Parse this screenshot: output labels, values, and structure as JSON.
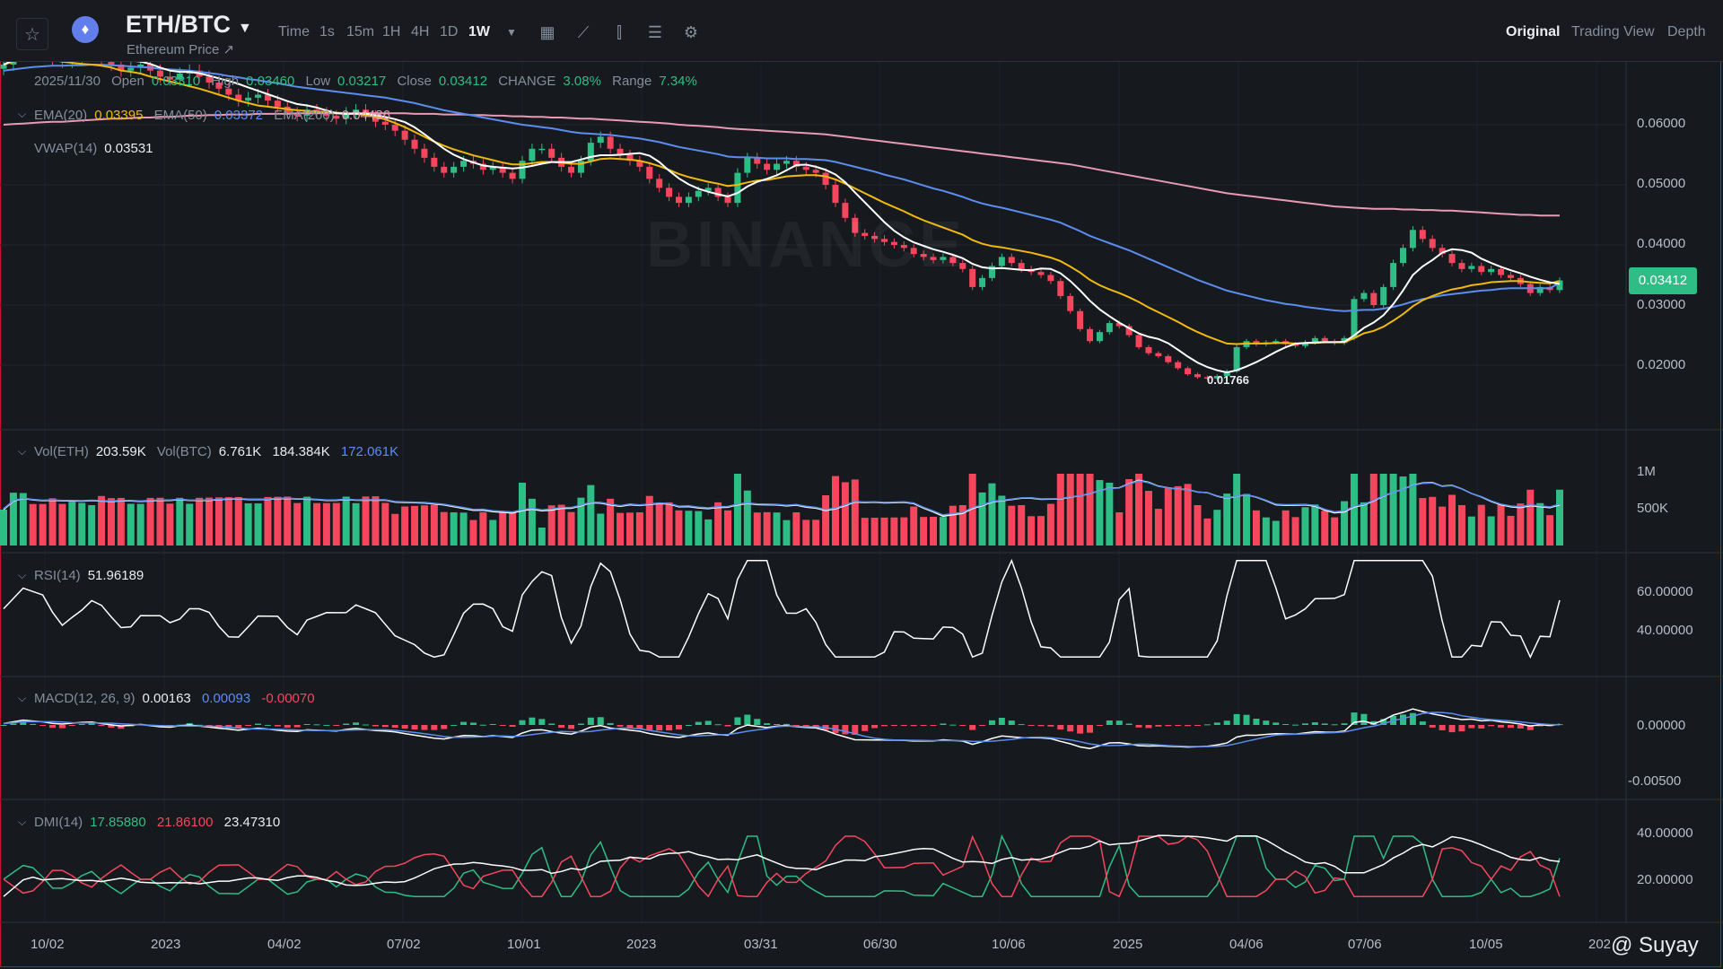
{
  "header": {
    "pair": "ETH/BTC",
    "subtitle": "Ethereum Price ↗",
    "timeframes": [
      "Time",
      "1s",
      "15m",
      "1H",
      "4H",
      "1D",
      "1W"
    ],
    "active_timeframe": "1W",
    "views": [
      "Original",
      "Trading View",
      "Depth"
    ],
    "active_view": "Original",
    "icons": [
      "star-icon",
      "eth-coin-icon",
      "calendar-icon",
      "indicator-icon",
      "candle-type-icon",
      "settings-list-icon",
      "gear-icon"
    ]
  },
  "ohlc": {
    "date": "2025/11/30",
    "open_label": "Open",
    "open": "0.03310",
    "high_label": "High",
    "high": "0.03460",
    "low_label": "Low",
    "low": "0.03217",
    "close_label": "Close",
    "close": "0.03412",
    "change_label": "CHANGE",
    "change": "3.08%",
    "range_label": "Range",
    "range": "7.34%"
  },
  "ema": {
    "ema20_label": "EMA(20)",
    "ema20": "0.03395",
    "ema50_label": "EMA(50)",
    "ema50": "0.03372",
    "ema200_label": "EMA(200)",
    "ema200": "0.04486"
  },
  "vwap": {
    "label": "VWAP(14)",
    "value": "0.03531"
  },
  "price_axis": [
    "0.06000",
    "0.05000",
    "0.04000",
    "0.03000",
    "0.02000"
  ],
  "last_price": "0.03412",
  "low_marker": "0.01766",
  "watermark": "BINANCE",
  "volume": {
    "label_eth": "Vol(ETH)",
    "eth": "203.59K",
    "label_btc": "Vol(BTC)",
    "btc": "6.761K",
    "ma1": "184.384K",
    "ma2": "172.061K",
    "axis": [
      "1M",
      "500K"
    ]
  },
  "rsi": {
    "label": "RSI(14)",
    "value": "51.96189",
    "axis": [
      "60.00000",
      "40.00000"
    ]
  },
  "macd": {
    "label": "MACD(12, 26, 9)",
    "dif": "0.00163",
    "dea": "0.00093",
    "hist": "-0.00070",
    "axis": [
      "0.00000",
      "-0.00500"
    ]
  },
  "dmi": {
    "label": "DMI(14)",
    "pdi": "17.85880",
    "mdi": "21.86100",
    "adx": "23.47310",
    "axis": [
      "40.00000",
      "20.00000"
    ]
  },
  "x_axis": [
    "10/02",
    "2023",
    "04/02",
    "07/02",
    "10/01",
    "2023",
    "03/31",
    "06/30",
    "10/06",
    "2025",
    "04/06",
    "07/06",
    "10/05",
    "202"
  ],
  "credit": "@ Suyay",
  "colors": {
    "up": "#2ebd85",
    "down": "#f6465d",
    "ema20": "#f0b90b",
    "ema50": "#5b8def",
    "ema200": "#e89ab4",
    "vwap": "#ffffff",
    "bg": "#161a1e"
  },
  "chart_data": {
    "type": "candlestick",
    "title": "ETH/BTC",
    "interval": "1W",
    "close_series": [
      0.07,
      0.0715,
      0.073,
      0.0725,
      0.072,
      0.071,
      0.0705,
      0.0712,
      0.0718,
      0.0722,
      0.071,
      0.07,
      0.069,
      0.0695,
      0.07,
      0.069,
      0.068,
      0.0675,
      0.0685,
      0.069,
      0.068,
      0.067,
      0.066,
      0.065,
      0.064,
      0.0645,
      0.065,
      0.064,
      0.063,
      0.062,
      0.0615,
      0.0625,
      0.062,
      0.0615,
      0.061,
      0.062,
      0.0625,
      0.0615,
      0.0605,
      0.06,
      0.059,
      0.0575,
      0.056,
      0.0545,
      0.053,
      0.052,
      0.053,
      0.054,
      0.0535,
      0.0525,
      0.053,
      0.052,
      0.051,
      0.054,
      0.056,
      0.056,
      0.0545,
      0.053,
      0.052,
      0.054,
      0.057,
      0.058,
      0.056,
      0.055,
      0.054,
      0.053,
      0.051,
      0.0495,
      0.048,
      0.047,
      0.048,
      0.049,
      0.0495,
      0.048,
      0.047,
      0.052,
      0.0545,
      0.0535,
      0.0525,
      0.0535,
      0.054,
      0.053,
      0.0525,
      0.052,
      0.05,
      0.047,
      0.0445,
      0.042,
      0.0415,
      0.041,
      0.0405,
      0.04,
      0.0395,
      0.0385,
      0.038,
      0.0375,
      0.038,
      0.037,
      0.036,
      0.033,
      0.0345,
      0.0365,
      0.038,
      0.037,
      0.036,
      0.0355,
      0.035,
      0.034,
      0.0315,
      0.029,
      0.026,
      0.024,
      0.0255,
      0.027,
      0.0265,
      0.025,
      0.023,
      0.022,
      0.0215,
      0.0205,
      0.0195,
      0.0185,
      0.018,
      0.0178,
      0.0182,
      0.019,
      0.023,
      0.024,
      0.0235,
      0.0238,
      0.024,
      0.0235,
      0.0232,
      0.0238,
      0.0245,
      0.024,
      0.0237,
      0.0245,
      0.031,
      0.032,
      0.03,
      0.033,
      0.037,
      0.0395,
      0.0425,
      0.041,
      0.0395,
      0.0385,
      0.037,
      0.036,
      0.0365,
      0.0355,
      0.036,
      0.035,
      0.0345,
      0.0335,
      0.032,
      0.033,
      0.0325,
      0.0341
    ],
    "ema20": [
      0.07,
      0.0705,
      0.071,
      0.071,
      0.071,
      0.0708,
      0.0705,
      0.0703,
      0.0701,
      0.07,
      0.0698,
      0.0695,
      0.069,
      0.0688,
      0.0685,
      0.068,
      0.0676,
      0.0672,
      0.0668,
      0.0664,
      0.066,
      0.0655,
      0.065,
      0.0645,
      0.064,
      0.0636,
      0.0632,
      0.063,
      0.0628,
      0.0626,
      0.0624,
      0.0623,
      0.0622,
      0.0621,
      0.062,
      0.0619,
      0.0618,
      0.0616,
      0.0613,
      0.0609,
      0.0603,
      0.0596,
      0.0588,
      0.058,
      0.0572,
      0.0565,
      0.0559,
      0.0554,
      0.0549,
      0.0545,
      0.0541,
      0.0537,
      0.0534,
      0.0534,
      0.0536,
      0.0538,
      0.0538,
      0.0537,
      0.0535,
      0.0535,
      0.0539,
      0.0543,
      0.0544,
      0.0543,
      0.0542,
      0.054,
      0.0536,
      0.0531,
      0.0525,
      0.0518,
      0.0513,
      0.0509,
      0.0505,
      0.0502,
      0.0498,
      0.05,
      0.0504,
      0.0507,
      0.0508,
      0.0511,
      0.0514,
      0.0515,
      0.0516,
      0.0516,
      0.0514,
      0.0509,
      0.0502,
      0.0494,
      0.0486,
      0.0478,
      0.047,
      0.0463,
      0.0456,
      0.0448,
      0.0441,
      0.0435,
      0.0429,
      0.0423,
      0.0417,
      0.0408,
      0.0402,
      0.0398,
      0.0396,
      0.0393,
      0.039,
      0.0387,
      0.0383,
      0.0379,
      0.0373,
      0.0364,
      0.0354,
      0.0342,
      0.0333,
      0.0326,
      0.032,
      0.0313,
      0.0305,
      0.0296,
      0.0288,
      0.028,
      0.0272,
      0.0263,
      0.0255,
      0.0248,
      0.0242,
      0.0236,
      0.0235,
      0.0236,
      0.0236,
      0.0236,
      0.0237,
      0.0237,
      0.0236,
      0.0237,
      0.0237,
      0.0238,
      0.0238,
      0.0238,
      0.0245,
      0.0253,
      0.0257,
      0.0264,
      0.0274,
      0.0285,
      0.0298,
      0.0308,
      0.0315,
      0.0321,
      0.0326,
      0.0329,
      0.0333,
      0.0335,
      0.0338,
      0.0339,
      0.034,
      0.034,
      0.0338,
      0.0337,
      0.0336,
      0.034
    ],
    "ema50": [
      0.069,
      0.0692,
      0.0694,
      0.0696,
      0.0697,
      0.0698,
      0.0698,
      0.0699,
      0.0699,
      0.07,
      0.07,
      0.0699,
      0.0698,
      0.0697,
      0.0696,
      0.0695,
      0.0693,
      0.0692,
      0.0691,
      0.069,
      0.0688,
      0.0686,
      0.0684,
      0.0681,
      0.0679,
      0.0676,
      0.0674,
      0.0671,
      0.0669,
      0.0666,
      0.0663,
      0.0661,
      0.0659,
      0.0657,
      0.0655,
      0.0653,
      0.0651,
      0.0649,
      0.0647,
      0.0645,
      0.0642,
      0.0639,
      0.0636,
      0.0632,
      0.0628,
      0.0624,
      0.0621,
      0.0618,
      0.0615,
      0.0612,
      0.0609,
      0.0606,
      0.0603,
      0.06,
      0.0598,
      0.0596,
      0.0594,
      0.0591,
      0.0588,
      0.0586,
      0.0585,
      0.0584,
      0.0583,
      0.0581,
      0.0579,
      0.0577,
      0.0574,
      0.0571,
      0.0567,
      0.0563,
      0.056,
      0.0557,
      0.0554,
      0.0551,
      0.0547,
      0.0546,
      0.0546,
      0.0545,
      0.0544,
      0.0544,
      0.0544,
      0.0543,
      0.0543,
      0.0542,
      0.0541,
      0.0538,
      0.0534,
      0.053,
      0.0526,
      0.0522,
      0.0517,
      0.0513,
      0.0509,
      0.0504,
      0.0499,
      0.0494,
      0.049,
      0.0485,
      0.048,
      0.0474,
      0.0469,
      0.0465,
      0.0462,
      0.0458,
      0.0454,
      0.045,
      0.0446,
      0.0442,
      0.0437,
      0.043,
      0.0423,
      0.0415,
      0.0409,
      0.0403,
      0.0397,
      0.0391,
      0.0384,
      0.0377,
      0.037,
      0.0363,
      0.0356,
      0.0349,
      0.0342,
      0.0336,
      0.033,
      0.0324,
      0.032,
      0.0316,
      0.0312,
      0.0308,
      0.0305,
      0.0302,
      0.03,
      0.0297,
      0.0295,
      0.0293,
      0.0291,
      0.029,
      0.0291,
      0.0292,
      0.0292,
      0.0294,
      0.0297,
      0.0301,
      0.0306,
      0.031,
      0.0313,
      0.0316,
      0.0318,
      0.032,
      0.0322,
      0.0324,
      0.0325,
      0.0327,
      0.0328,
      0.0328,
      0.0328,
      0.0328,
      0.0328,
      0.0337
    ],
    "ema200": [
      0.06,
      0.0601,
      0.0602,
      0.0603,
      0.0604,
      0.0605,
      0.0605,
      0.0606,
      0.0607,
      0.0608,
      0.0609,
      0.061,
      0.061,
      0.0611,
      0.0612,
      0.0612,
      0.0613,
      0.0613,
      0.0614,
      0.0615,
      0.0615,
      0.0616,
      0.0616,
      0.0617,
      0.0617,
      0.0617,
      0.0618,
      0.0618,
      0.0618,
      0.0618,
      0.0619,
      0.0619,
      0.0619,
      0.0619,
      0.0619,
      0.0619,
      0.0619,
      0.0619,
      0.0619,
      0.0619,
      0.0619,
      0.0619,
      0.0618,
      0.0618,
      0.0618,
      0.0617,
      0.0617,
      0.0617,
      0.0616,
      0.0616,
      0.0615,
      0.0615,
      0.0614,
      0.0614,
      0.0613,
      0.0613,
      0.0612,
      0.0612,
      0.0611,
      0.061,
      0.061,
      0.0609,
      0.0608,
      0.0607,
      0.0606,
      0.0605,
      0.0604,
      0.0603,
      0.0602,
      0.06,
      0.0599,
      0.0598,
      0.0597,
      0.0596,
      0.0594,
      0.0593,
      0.0592,
      0.0591,
      0.059,
      0.0589,
      0.0588,
      0.0587,
      0.0586,
      0.0585,
      0.0584,
      0.0582,
      0.058,
      0.0578,
      0.0576,
      0.0574,
      0.0572,
      0.057,
      0.0568,
      0.0566,
      0.0564,
      0.0562,
      0.056,
      0.0558,
      0.0556,
      0.0554,
      0.0552,
      0.055,
      0.0548,
      0.0546,
      0.0544,
      0.0542,
      0.054,
      0.0538,
      0.0536,
      0.0534,
      0.0531,
      0.0528,
      0.0525,
      0.0522,
      0.0519,
      0.0516,
      0.0513,
      0.051,
      0.0507,
      0.0504,
      0.0501,
      0.0498,
      0.0495,
      0.0492,
      0.0489,
      0.0486,
      0.0484,
      0.0482,
      0.048,
      0.0478,
      0.0476,
      0.0474,
      0.0472,
      0.047,
      0.0468,
      0.0466,
      0.0464,
      0.0463,
      0.0462,
      0.0461,
      0.046,
      0.046,
      0.046,
      0.0459,
      0.0459,
      0.0458,
      0.0458,
      0.0457,
      0.0457,
      0.0456,
      0.0455,
      0.0454,
      0.0453,
      0.0452,
      0.0451,
      0.045,
      0.045,
      0.0449,
      0.0449,
      0.0449
    ]
  }
}
